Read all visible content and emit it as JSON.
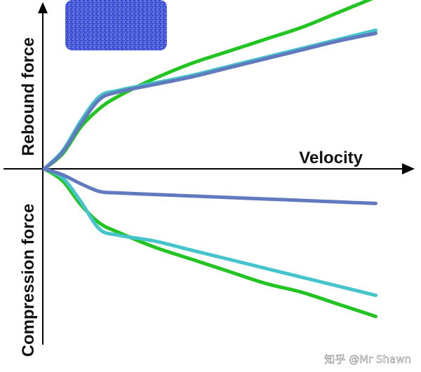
{
  "chart_data": {
    "type": "line",
    "x_axis_label": "Velocity",
    "y_axis_label_positive": "Rebound force",
    "y_axis_label_negative": "Compression force",
    "xlim": [
      0,
      10
    ],
    "ylim": [
      -5,
      5
    ],
    "grid": false,
    "legend": "none",
    "series": [
      {
        "color": "#22c422",
        "x": [
          0,
          0.5,
          1.0,
          1.5,
          2.0,
          3.0,
          4.0,
          5.0,
          6.0,
          7.0,
          8.0,
          9.0
        ],
        "rebound": [
          0,
          0.5,
          1.4,
          2.0,
          2.4,
          3.0,
          3.5,
          3.9,
          4.3,
          4.7,
          5.2,
          5.7
        ],
        "compression": [
          0,
          -0.4,
          -1.2,
          -1.8,
          -2.1,
          -2.6,
          -3.0,
          -3.4,
          -3.8,
          -4.1,
          -4.5,
          -4.9
        ]
      },
      {
        "color": "#45c4cc",
        "x": [
          0,
          0.5,
          1.0,
          1.5,
          2.0,
          3.0,
          4.0,
          5.0,
          6.0,
          7.0,
          8.0,
          9.0
        ],
        "rebound": [
          0,
          0.6,
          1.6,
          2.4,
          2.6,
          2.85,
          3.1,
          3.4,
          3.7,
          4.0,
          4.3,
          4.6
        ],
        "compression": [
          0,
          -0.3,
          -1.1,
          -2.0,
          -2.2,
          -2.4,
          -2.7,
          -3.0,
          -3.3,
          -3.6,
          -3.9,
          -4.2
        ]
      },
      {
        "color": "#6079bf",
        "x": [
          0,
          0.5,
          1.0,
          1.5,
          2.0,
          3.0,
          4.0,
          5.0,
          6.0,
          7.0,
          8.0,
          9.0
        ],
        "rebound": [
          0,
          0.55,
          1.5,
          2.3,
          2.55,
          2.8,
          3.05,
          3.35,
          3.65,
          3.95,
          4.25,
          4.5
        ],
        "compression": [
          0,
          -0.2,
          -0.5,
          -0.75,
          -0.8,
          -0.85,
          -0.9,
          -0.95,
          -1.0,
          -1.05,
          -1.1,
          -1.15
        ]
      }
    ]
  },
  "watermark": "知乎 @Mr Shawn"
}
